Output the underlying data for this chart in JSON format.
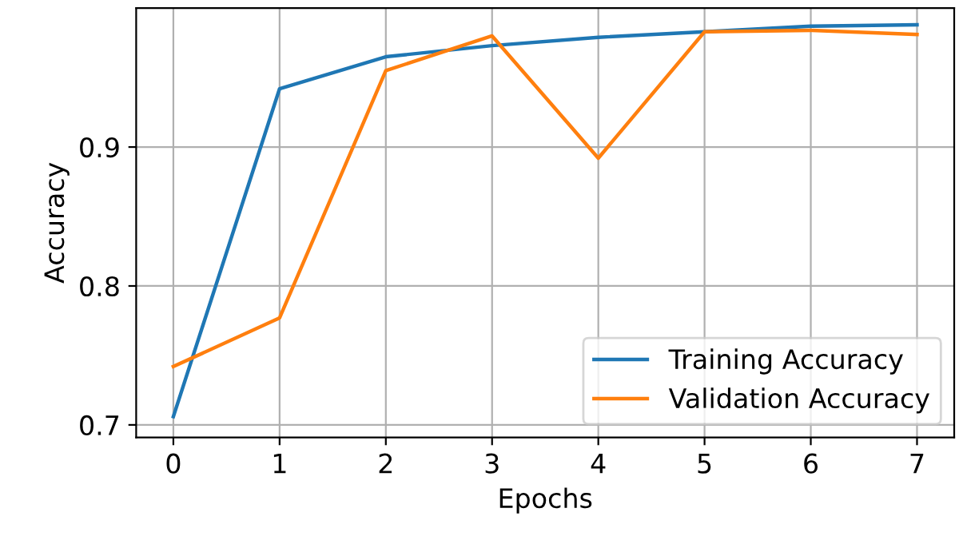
{
  "chart_data": {
    "type": "line",
    "xlabel": "Epochs",
    "ylabel": "Accuracy",
    "x": [
      0,
      1,
      2,
      3,
      4,
      5,
      6,
      7
    ],
    "series": [
      {
        "name": "Training Accuracy",
        "color": "#1f77b4",
        "values": [
          0.706,
          0.942,
          0.965,
          0.973,
          0.979,
          0.983,
          0.987,
          0.988
        ]
      },
      {
        "name": "Validation Accuracy",
        "color": "#ff7f0e",
        "values": [
          0.742,
          0.777,
          0.955,
          0.98,
          0.892,
          0.983,
          0.984,
          0.981
        ]
      }
    ],
    "xlim": [
      -0.35,
      7.35
    ],
    "xticks": [
      0,
      1,
      2,
      3,
      4,
      5,
      6,
      7
    ],
    "ylim": [
      0.691,
      1.0
    ],
    "yticks": [
      {
        "value": 0.7,
        "label": "0.7"
      },
      {
        "value": 0.8,
        "label": "0.8"
      },
      {
        "value": 0.9,
        "label": "0.9"
      }
    ],
    "grid": true,
    "legend": "bottom right",
    "line_style": "solid"
  }
}
